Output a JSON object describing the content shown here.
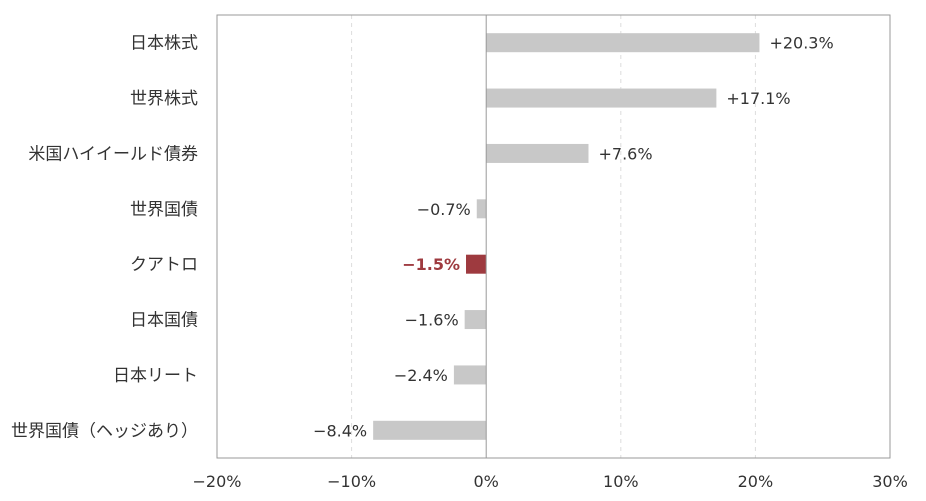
{
  "chart_data": {
    "type": "bar",
    "orientation": "horizontal",
    "categories": [
      "日本株式",
      "世界株式",
      "米国ハイイールド債券",
      "世界国債",
      "クアトロ",
      "日本国債",
      "日本リート",
      "世界国債（ヘッジあり）"
    ],
    "values": [
      20.3,
      17.1,
      7.6,
      -0.7,
      -1.5,
      -1.6,
      -2.4,
      -8.4
    ],
    "value_labels": [
      "+20.3%",
      "+17.1%",
      "+7.6%",
      "−0.7%",
      "−1.5%",
      "−1.6%",
      "−2.4%",
      "−8.4%"
    ],
    "highlight_index": 4,
    "xlim": [
      -20,
      30
    ],
    "xticks": [
      -20,
      -10,
      0,
      10,
      20,
      30
    ],
    "xtick_labels": [
      "−20%",
      "−10%",
      "0%",
      "10%",
      "20%",
      "30%"
    ],
    "grid": "vertical dashed",
    "title": "",
    "xlabel": "",
    "ylabel": "",
    "colors": {
      "bar": "#c8c8c8",
      "highlight": "#9e3a3f",
      "axis": "#999999",
      "grid": "#dddddd",
      "text": "#333333"
    }
  }
}
